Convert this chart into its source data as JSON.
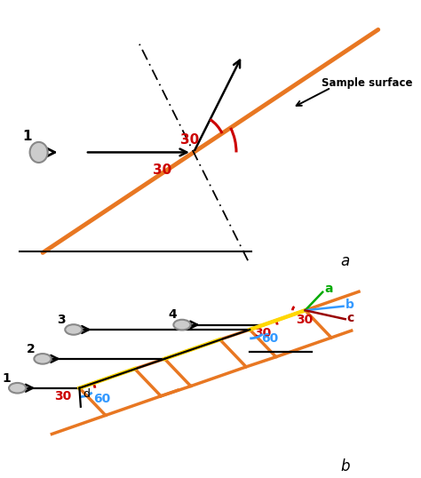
{
  "fig_width": 4.74,
  "fig_height": 5.38,
  "dpi": 100,
  "orange_color": "#E87722",
  "yellow_color": "#FFD700",
  "red_color": "#CC0000",
  "blue_color": "#3399FF",
  "green_color": "#00AA00",
  "dark_red_color": "#990000",
  "panel_a_label": "a",
  "panel_b_label": "b",
  "sample_surface_label": "Sample surface"
}
